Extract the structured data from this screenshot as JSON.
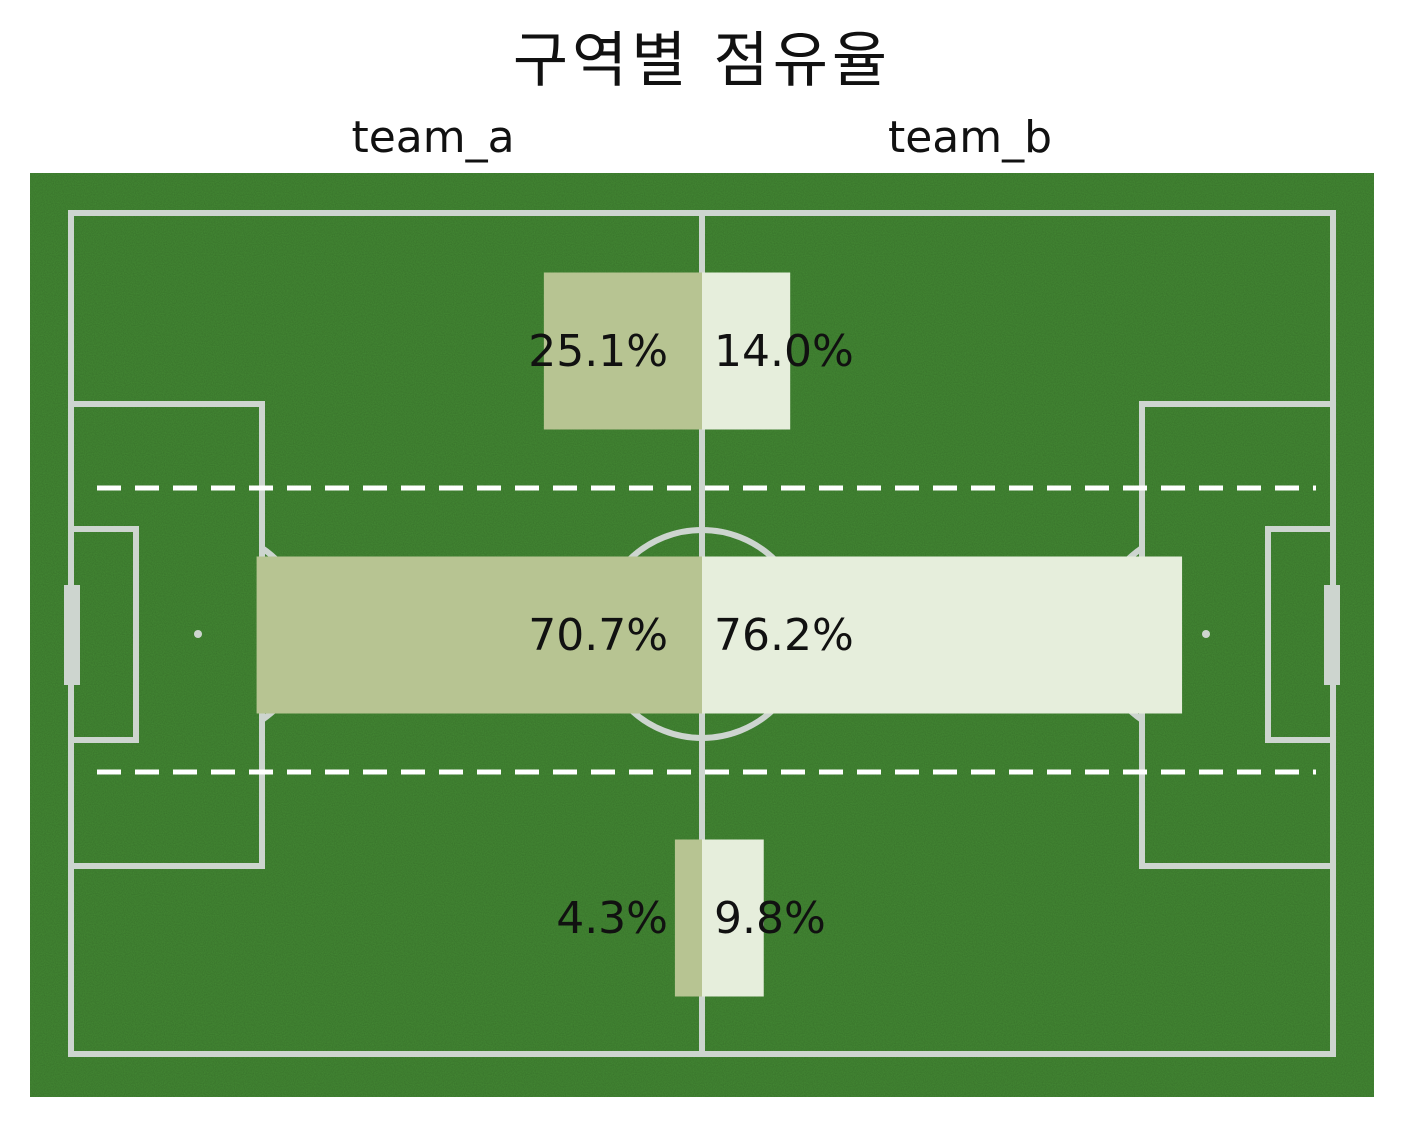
{
  "title": "구역별 점유율",
  "teams": {
    "a": {
      "name": "team_a",
      "color": "#b7c492"
    },
    "b": {
      "name": "team_b",
      "color": "#e6eedc"
    }
  },
  "pitch": {
    "grass_color": "#448a34",
    "line_color": "#cdd5cf",
    "divider_color": "#ffffff"
  },
  "chart_data": {
    "type": "bar",
    "orientation": "horizontal-diverging",
    "categories": [
      "top",
      "middle",
      "bottom"
    ],
    "xlim": [
      0,
      100
    ],
    "series": [
      {
        "name": "team_a",
        "values": [
          25.1,
          70.7,
          4.3
        ],
        "labels": [
          "25.1%",
          "70.7%",
          "4.3%"
        ]
      },
      {
        "name": "team_b",
        "values": [
          14.0,
          76.2,
          9.8
        ],
        "labels": [
          "14.0%",
          "76.2%",
          "9.8%"
        ]
      }
    ]
  }
}
